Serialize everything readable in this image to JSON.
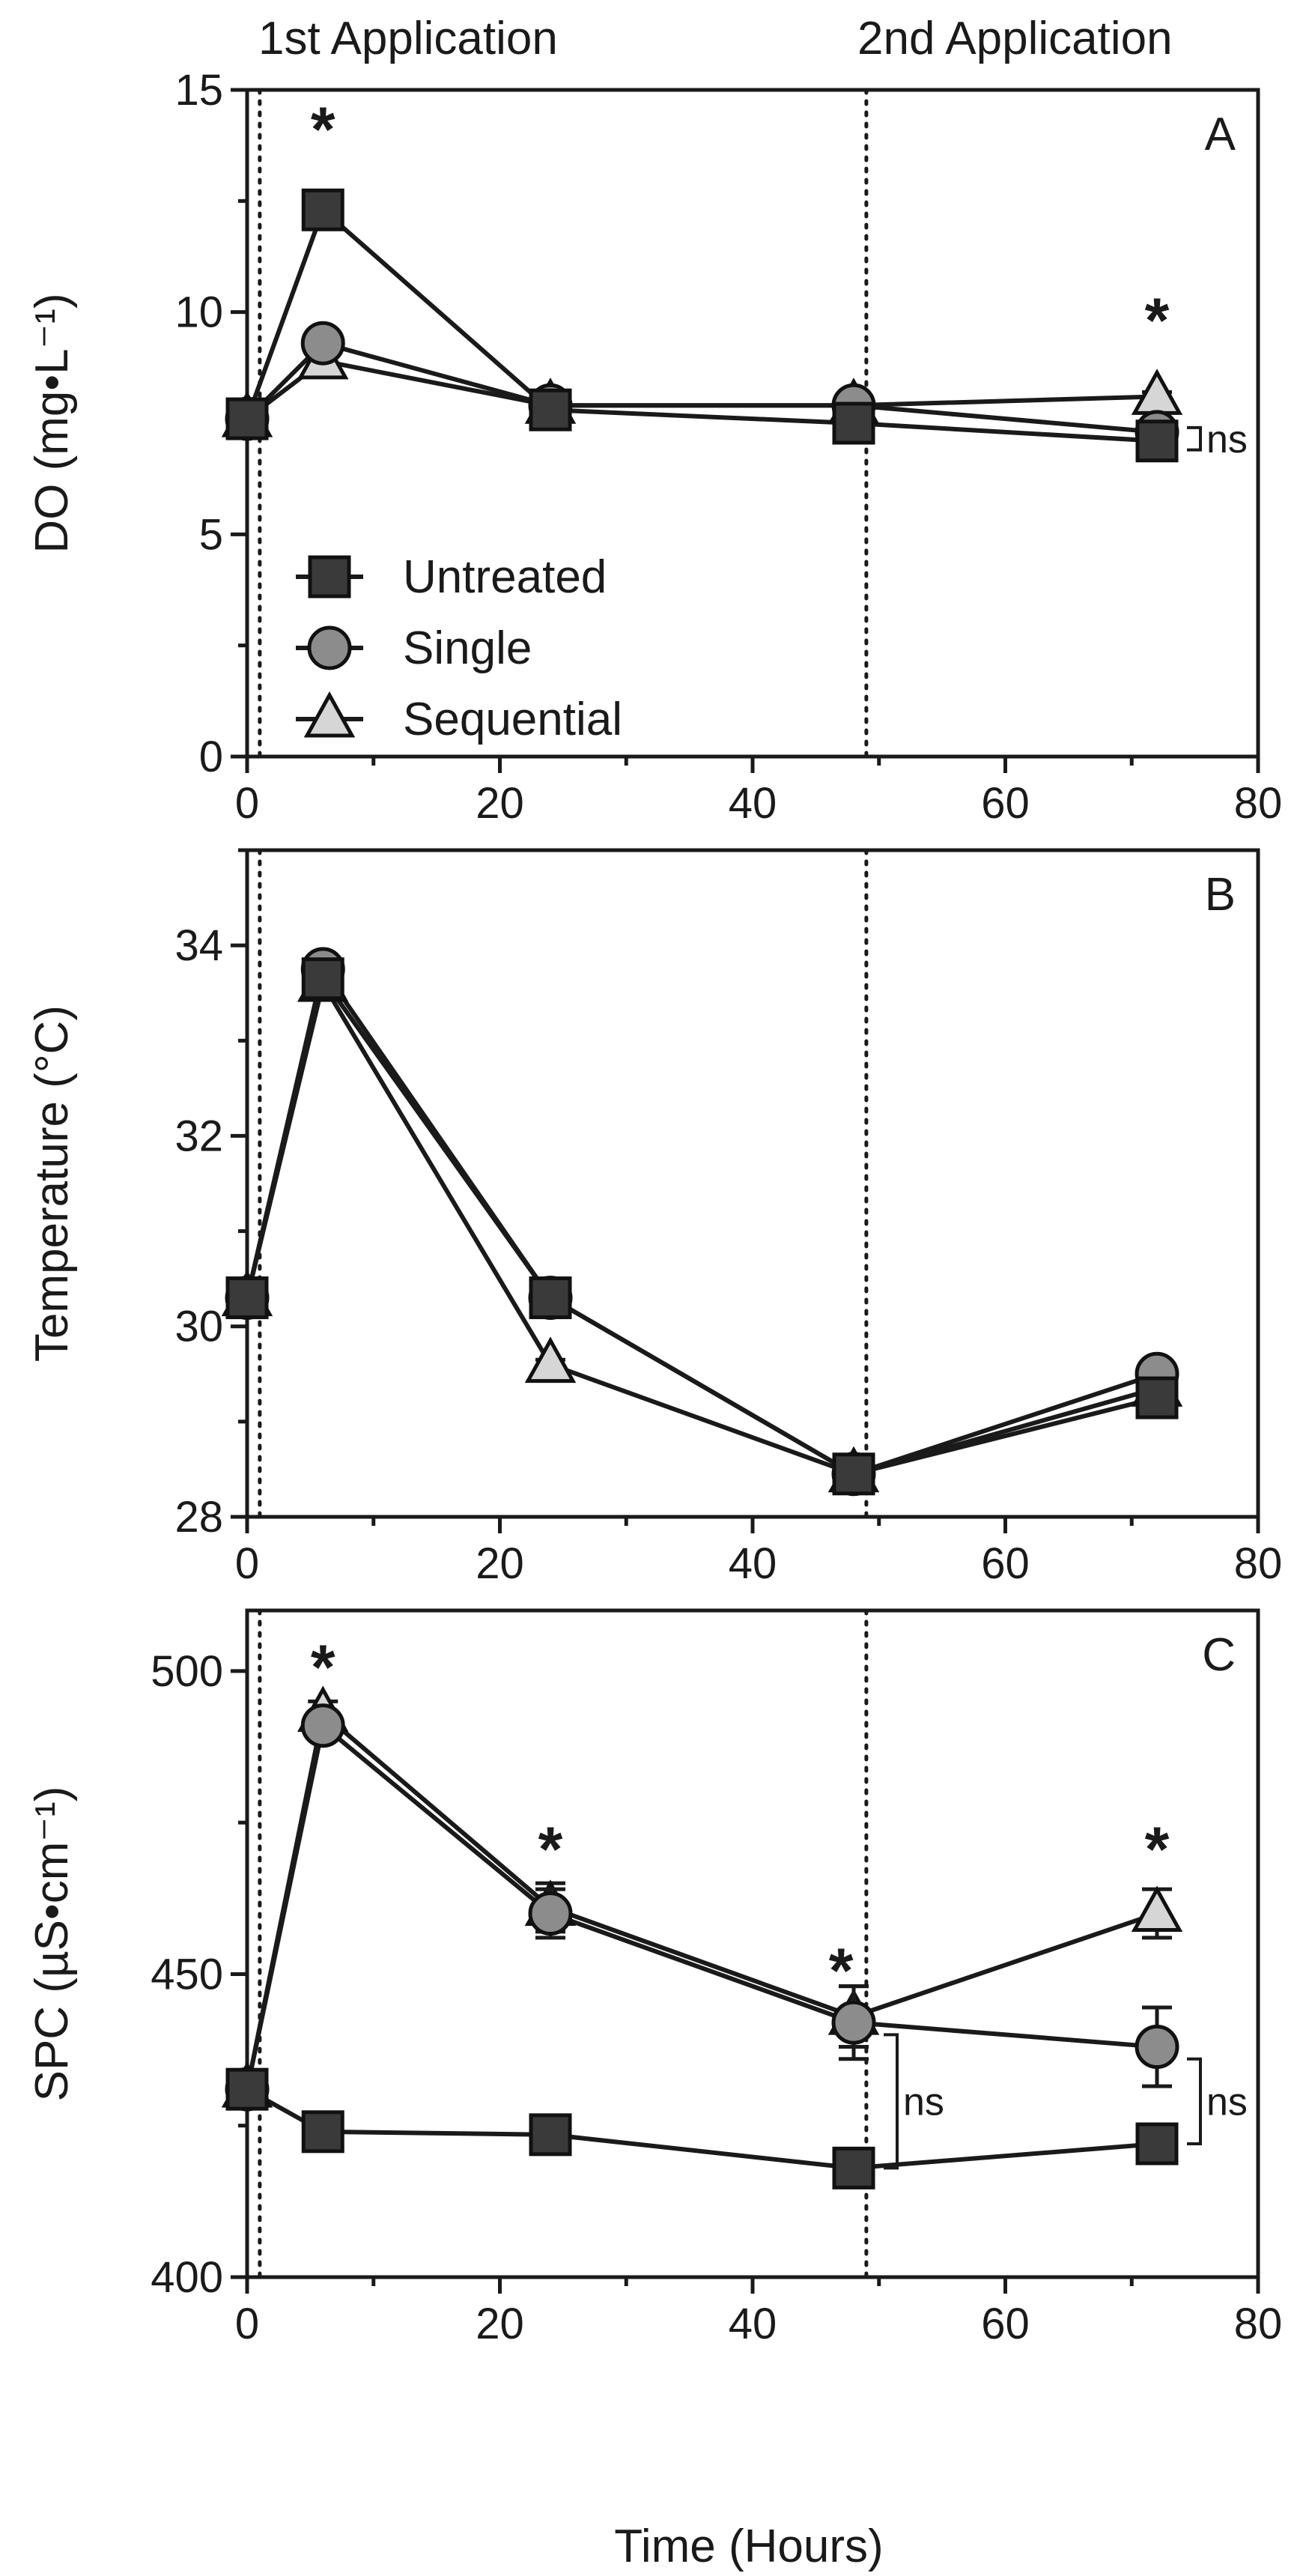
{
  "figure_labels": {
    "first_application": "1st Application",
    "second_application": "2nd Application",
    "x_axis_title": "Time (Hours)"
  },
  "legend": {
    "untreated": "Untreated",
    "single": "Single",
    "sequential": "Sequential"
  },
  "colors": {
    "untreated": "#3a3a3a",
    "single": "#8c8c8c",
    "sequential": "#d6d6d6",
    "axis": "#1a1a1a"
  },
  "chart_data": [
    {
      "type": "line",
      "panel": "A",
      "ylabel": "DO (mg•L⁻¹)",
      "xlabel": "",
      "xlim": [
        0,
        80
      ],
      "ylim": [
        0,
        15
      ],
      "xticks": [
        0,
        20,
        40,
        60,
        80
      ],
      "yticks": [
        0,
        5,
        10,
        15
      ],
      "application_times": [
        1,
        49
      ],
      "x": [
        0,
        6,
        24,
        48,
        72
      ],
      "series": [
        {
          "name": "Untreated",
          "marker": "square",
          "values": [
            7.6,
            12.3,
            7.8,
            7.5,
            7.1
          ],
          "errors": [
            0.1,
            0.2,
            0.1,
            0.1,
            0.1
          ]
        },
        {
          "name": "Single",
          "marker": "circle",
          "values": [
            7.6,
            9.3,
            7.9,
            7.9,
            7.3
          ],
          "errors": [
            0.1,
            0.1,
            0.1,
            0.1,
            0.1
          ]
        },
        {
          "name": "Sequential",
          "marker": "triangle",
          "values": [
            7.6,
            8.9,
            7.9,
            7.9,
            8.1
          ],
          "errors": [
            0.1,
            0.1,
            0.1,
            0.1,
            0.1
          ]
        }
      ],
      "significance": [
        {
          "x": 6,
          "y": 14.3,
          "label": "*"
        },
        {
          "x": 72,
          "y": 10.0,
          "label": "*"
        }
      ],
      "ns_brackets": [
        {
          "x": 72,
          "y_low": 6.9,
          "y_high": 7.4,
          "label": "ns"
        }
      ]
    },
    {
      "type": "line",
      "panel": "B",
      "ylabel": "Temperature (°C)",
      "xlabel": "",
      "xlim": [
        0,
        80
      ],
      "ylim": [
        28,
        35
      ],
      "xticks": [
        0,
        20,
        40,
        60,
        80
      ],
      "yticks": [
        28,
        30,
        32,
        34
      ],
      "application_times": [
        1,
        49
      ],
      "x": [
        0,
        6,
        24,
        48,
        72
      ],
      "series": [
        {
          "name": "Untreated",
          "marker": "square",
          "values": [
            30.3,
            33.65,
            30.3,
            28.45,
            29.25
          ],
          "errors": [
            0.05,
            0.05,
            0.05,
            0.05,
            0.05
          ]
        },
        {
          "name": "Single",
          "marker": "circle",
          "values": [
            30.3,
            33.75,
            30.3,
            28.45,
            29.5
          ],
          "errors": [
            0.05,
            0.05,
            0.05,
            0.05,
            0.05
          ]
        },
        {
          "name": "Sequential",
          "marker": "triangle",
          "values": [
            30.3,
            33.6,
            29.6,
            28.45,
            29.35
          ],
          "errors": [
            0.05,
            0.05,
            0.05,
            0.05,
            0.05
          ]
        }
      ],
      "significance": [],
      "ns_brackets": []
    },
    {
      "type": "line",
      "panel": "C",
      "ylabel": "SPC (µS•cm⁻¹)",
      "xlabel": "Time (Hours)",
      "xlim": [
        0,
        80
      ],
      "ylim": [
        400,
        510
      ],
      "xticks": [
        0,
        20,
        40,
        60,
        80
      ],
      "yticks": [
        400,
        450,
        500
      ],
      "application_times": [
        1,
        49
      ],
      "x": [
        0,
        6,
        24,
        48,
        72
      ],
      "series": [
        {
          "name": "Untreated",
          "marker": "square",
          "values": [
            431,
            424,
            423.5,
            418,
            422
          ],
          "errors": [
            1,
            1,
            1,
            1,
            1
          ]
        },
        {
          "name": "Single",
          "marker": "circle",
          "values": [
            431,
            491,
            460,
            442,
            438
          ],
          "errors": [
            1,
            2,
            4,
            6,
            6.5
          ]
        },
        {
          "name": "Sequential",
          "marker": "triangle",
          "values": [
            431,
            493,
            461,
            443,
            460
          ],
          "errors": [
            1,
            2,
            4,
            5,
            4
          ]
        }
      ],
      "significance": [
        {
          "x": 6,
          "y": 502,
          "label": "*"
        },
        {
          "x": 24,
          "y": 472,
          "label": "*"
        },
        {
          "x": 47,
          "y": 452,
          "label": "*"
        },
        {
          "x": 72,
          "y": 472,
          "label": "*"
        }
      ],
      "ns_brackets": [
        {
          "x": 48,
          "y_low": 418,
          "y_high": 440,
          "label": "ns"
        },
        {
          "x": 72,
          "y_low": 422,
          "y_high": 436,
          "label": "ns"
        }
      ]
    }
  ]
}
